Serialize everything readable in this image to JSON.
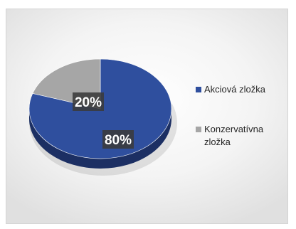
{
  "chart_data": {
    "type": "pie",
    "categories": [
      "Akciová zložka",
      "Konzervatívna zložka"
    ],
    "values": [
      80,
      20
    ],
    "data_labels": [
      "80%",
      "20%"
    ],
    "legend": [
      {
        "name": "Akciová zložka",
        "color": "#2f4f9e"
      },
      {
        "name": "Konzervatívna\nzložka",
        "color": "#a6a6a6"
      }
    ],
    "legend_position": "right",
    "style": "3d-pie",
    "colors": {
      "slice_1": "#2f4f9e",
      "slice_1_side": "#1c2f63",
      "slice_2": "#a6a6a6",
      "slice_2_side": "#6e6e6e"
    }
  }
}
